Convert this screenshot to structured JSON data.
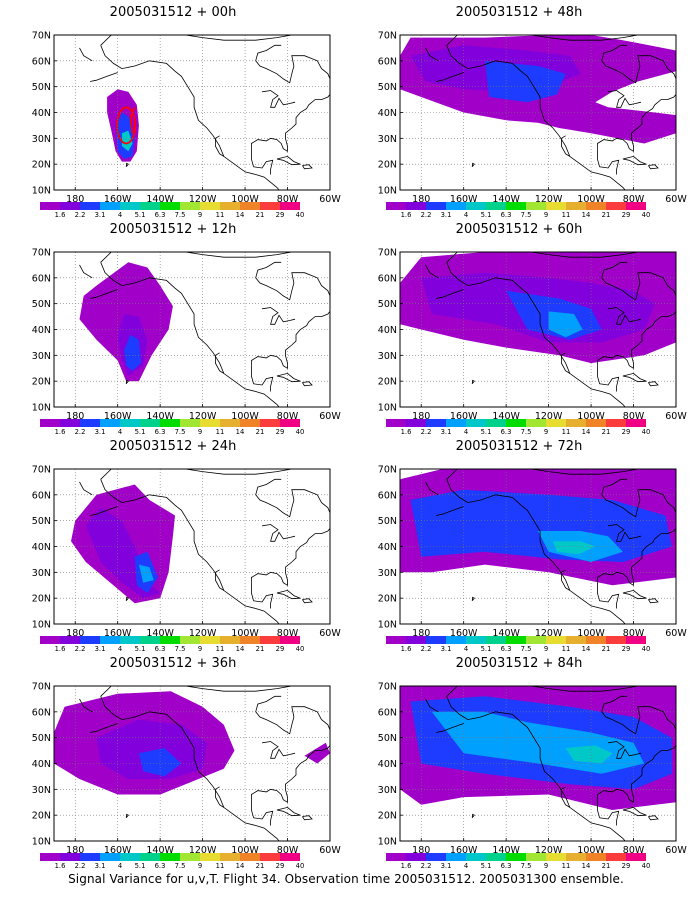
{
  "footer": "Signal Variance for u,v,T. Flight 34. Observation time 2005031512. 2005031300 ensemble.",
  "lat_labels": [
    "10N",
    "20N",
    "30N",
    "40N",
    "50N",
    "60N",
    "70N"
  ],
  "lon_labels": [
    "180",
    "160W",
    "140W",
    "120W",
    "100W",
    "80W",
    "60W"
  ],
  "colorbar": {
    "labels": [
      "1.6",
      "2.2",
      "3.1",
      "4",
      "5.1",
      "6.3",
      "7.5",
      "9",
      "11",
      "14",
      "21",
      "29",
      "40"
    ],
    "colors": [
      "#a000c8",
      "#8200dc",
      "#1e3cff",
      "#00a0ff",
      "#00c8c8",
      "#00d28c",
      "#00dc00",
      "#a0e632",
      "#e6dc32",
      "#e6af2d",
      "#f08228",
      "#fa3c3c",
      "#f00082"
    ]
  },
  "map_extent": {
    "lon_min": -190,
    "lon_max": -60,
    "lat_min": 10,
    "lat_max": 70
  },
  "panels": [
    {
      "title": "2005031512 + 00h",
      "contour": "red"
    },
    {
      "title": "2005031512 + 48h"
    },
    {
      "title": "2005031512 + 12h"
    },
    {
      "title": "2005031512 + 60h"
    },
    {
      "title": "2005031512 + 24h"
    },
    {
      "title": "2005031512 + 72h"
    },
    {
      "title": "2005031512 + 36h"
    },
    {
      "title": "2005031512 + 84h"
    }
  ]
}
